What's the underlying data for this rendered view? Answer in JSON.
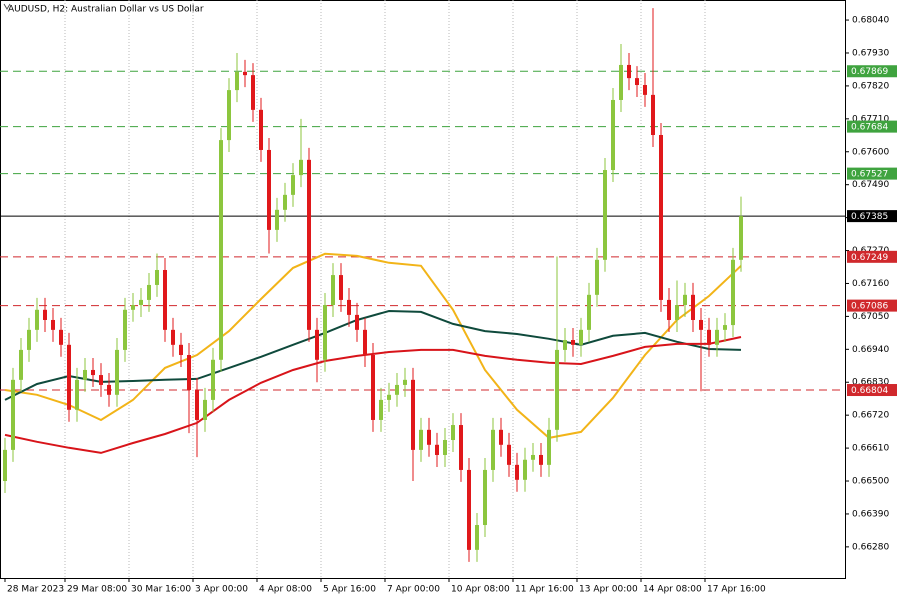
{
  "chart_data": {
    "type": "candlestick",
    "title": "AUDUSD, H2:  Australian Dollar vs US Dollar",
    "up_color": "#8cc63e",
    "down_color": "#e0181b",
    "xlim": [
      -0.625,
      105
    ],
    "xticks": [
      {
        "value": 0,
        "label": "28 Mar 2023"
      },
      {
        "value": 7.5,
        "label": "29 Mar 08:00"
      },
      {
        "value": 15.5,
        "label": "30 Mar 16:00"
      },
      {
        "value": 23.5,
        "label": "3 Apr 00:00"
      },
      {
        "value": 31.5,
        "label": "4 Apr 08:00"
      },
      {
        "value": 39.5,
        "label": "5 Apr 16:00"
      },
      {
        "value": 47.5,
        "label": "7 Apr 00:00"
      },
      {
        "value": 55.5,
        "label": "10 Apr 08:00"
      },
      {
        "value": 63.5,
        "label": "11 Apr 16:00"
      },
      {
        "value": 71.5,
        "label": "13 Apr 00:00"
      },
      {
        "value": 79.5,
        "label": "14 Apr 08:00"
      },
      {
        "value": 87.5,
        "label": "17 Apr 16:00"
      }
    ],
    "ylim": [
      0.66176,
      0.68107
    ],
    "yticks": [
      {
        "value": 0.6804,
        "label": "0.68040"
      },
      {
        "value": 0.6793,
        "label": "0.67930"
      },
      {
        "value": 0.6782,
        "label": "0.67820"
      },
      {
        "value": 0.6771,
        "label": "0.67710"
      },
      {
        "value": 0.676,
        "label": "0.67600"
      },
      {
        "value": 0.6749,
        "label": "0.67490"
      },
      {
        "value": 0.6738,
        "label": "0.67380"
      },
      {
        "value": 0.6727,
        "label": "0.67270"
      },
      {
        "value": 0.6716,
        "label": "0.67160"
      },
      {
        "value": 0.6705,
        "label": "0.67050"
      },
      {
        "value": 0.6694,
        "label": "0.66940"
      },
      {
        "value": 0.6683,
        "label": "0.66830"
      },
      {
        "value": 0.6672,
        "label": "0.66720"
      },
      {
        "value": 0.6661,
        "label": "0.66610"
      },
      {
        "value": 0.665,
        "label": "0.66500"
      },
      {
        "value": 0.6639,
        "label": "0.66390"
      },
      {
        "value": 0.6628,
        "label": "0.66280"
      }
    ],
    "grid": "vertical",
    "open": [
      0.665,
      0.66604,
      0.66838,
      0.66938,
      0.67005,
      0.67072,
      0.67038,
      0.67005,
      0.66955,
      0.66738,
      0.66838,
      0.66871,
      0.66854,
      0.66821,
      0.66788,
      0.66938,
      0.67072,
      0.67088,
      0.67105,
      0.67155,
      0.67205,
      0.67005,
      0.66955,
      0.66921,
      0.66804,
      0.66704,
      0.66771,
      0.66905,
      0.67639,
      0.67806,
      0.67867,
      0.67856,
      0.6774,
      0.67606,
      0.67339,
      0.67406,
      0.67456,
      0.67522,
      0.67573,
      0.67005,
      0.66905,
      0.67088,
      0.67188,
      0.67105,
      0.67055,
      0.67005,
      0.66921,
      0.66704,
      0.66771,
      0.66788,
      0.66821,
      0.66838,
      0.66604,
      0.66671,
      0.66621,
      0.66587,
      0.66637,
      0.66687,
      0.66537,
      0.6627,
      0.66353,
      0.66537,
      0.66671,
      0.66621,
      0.66554,
      0.66504,
      0.66571,
      0.66587,
      0.66554,
      0.66671,
      0.66938,
      0.66971,
      0.66955,
      0.67005,
      0.67122,
      0.67239,
      0.67539,
      0.67773,
      0.6789,
      0.67846,
      0.67823,
      0.6779,
      0.67656,
      0.67105,
      0.67038,
      0.67088,
      0.67122,
      0.67038,
      0.67005,
      0.66955,
      0.67005,
      0.67021,
      0.67239
    ],
    "high": [
      0.66644,
      0.66878,
      0.66978,
      0.67045,
      0.67112,
      0.67112,
      0.67078,
      0.67045,
      0.66995,
      0.66878,
      0.66911,
      0.66911,
      0.66894,
      0.66861,
      0.66978,
      0.67112,
      0.67128,
      0.67145,
      0.67195,
      0.6726,
      0.67245,
      0.67045,
      0.66995,
      0.66961,
      0.66844,
      0.66811,
      0.66945,
      0.67679,
      0.67846,
      0.6793,
      0.67907,
      0.67896,
      0.6778,
      0.67646,
      0.67446,
      0.67496,
      0.67562,
      0.6771,
      0.67613,
      0.67045,
      0.67128,
      0.67228,
      0.67228,
      0.67145,
      0.67095,
      0.67045,
      0.66961,
      0.66811,
      0.66828,
      0.66861,
      0.66878,
      0.66878,
      0.66711,
      0.66711,
      0.66661,
      0.66677,
      0.66727,
      0.66727,
      0.66577,
      0.66393,
      0.66577,
      0.66711,
      0.66711,
      0.66661,
      0.66594,
      0.66611,
      0.66627,
      0.66627,
      0.66711,
      0.6725,
      0.67011,
      0.67011,
      0.67045,
      0.67162,
      0.67279,
      0.67579,
      0.67813,
      0.6796,
      0.6793,
      0.67886,
      0.67863,
      0.6808,
      0.67696,
      0.67145,
      0.6717,
      0.67162,
      0.67162,
      0.67078,
      0.67045,
      0.67045,
      0.67061,
      0.67279,
      0.6745
    ],
    "low": [
      0.6646,
      0.66564,
      0.66798,
      0.66898,
      0.66965,
      0.66998,
      0.66965,
      0.66915,
      0.66698,
      0.66698,
      0.66798,
      0.66814,
      0.66781,
      0.66748,
      0.66748,
      0.66898,
      0.67032,
      0.67048,
      0.67065,
      0.67115,
      0.66965,
      0.66915,
      0.66881,
      0.6666,
      0.6658,
      0.66664,
      0.66731,
      0.66865,
      0.67599,
      0.67766,
      0.67816,
      0.677,
      0.67566,
      0.6726,
      0.67299,
      0.67366,
      0.67416,
      0.67482,
      0.66965,
      0.6683,
      0.66865,
      0.67048,
      0.67065,
      0.67015,
      0.66965,
      0.66881,
      0.66664,
      0.66664,
      0.66731,
      0.66748,
      0.66781,
      0.665,
      0.66564,
      0.66581,
      0.66547,
      0.66547,
      0.66597,
      0.66497,
      0.6623,
      0.6623,
      0.66313,
      0.66497,
      0.66581,
      0.66514,
      0.66464,
      0.66464,
      0.66531,
      0.66514,
      0.66514,
      0.66631,
      0.66898,
      0.66915,
      0.66915,
      0.66965,
      0.67082,
      0.67199,
      0.67499,
      0.67733,
      0.67806,
      0.67783,
      0.6775,
      0.67616,
      0.67065,
      0.66998,
      0.66998,
      0.67048,
      0.66998,
      0.668,
      0.66915,
      0.66915,
      0.66965,
      0.66981,
      0.67199
    ],
    "close": [
      0.66604,
      0.66838,
      0.66938,
      0.67005,
      0.67072,
      0.67038,
      0.67005,
      0.66955,
      0.66738,
      0.66838,
      0.66871,
      0.66854,
      0.66821,
      0.66788,
      0.66938,
      0.67072,
      0.67088,
      0.67105,
      0.67155,
      0.67205,
      0.67005,
      0.66955,
      0.66921,
      0.66804,
      0.66704,
      0.66771,
      0.66905,
      0.67639,
      0.67806,
      0.67867,
      0.67856,
      0.6774,
      0.67606,
      0.67339,
      0.67406,
      0.67456,
      0.67522,
      0.67573,
      0.67005,
      0.66905,
      0.67088,
      0.67188,
      0.67105,
      0.67055,
      0.67005,
      0.66921,
      0.66704,
      0.66771,
      0.66788,
      0.66821,
      0.66838,
      0.66604,
      0.66671,
      0.66621,
      0.66587,
      0.66637,
      0.66687,
      0.66537,
      0.6627,
      0.66353,
      0.66537,
      0.66671,
      0.66621,
      0.66554,
      0.66504,
      0.66571,
      0.66587,
      0.66554,
      0.66671,
      0.66938,
      0.66971,
      0.66955,
      0.67005,
      0.67122,
      0.67239,
      0.67539,
      0.67773,
      0.6789,
      0.67846,
      0.67823,
      0.6779,
      0.67656,
      0.67105,
      0.67038,
      0.67088,
      0.67122,
      0.67038,
      0.67005,
      0.66955,
      0.67005,
      0.67021,
      0.67239,
      0.67385
    ],
    "series": [
      {
        "color": "#f2b418",
        "x": [
          0,
          4,
          8,
          12,
          16,
          20,
          24,
          28,
          32,
          36,
          40,
          44,
          48,
          52,
          56,
          60,
          64,
          68,
          72,
          76,
          80,
          84,
          88,
          92
        ],
        "values": [
          0.66804,
          0.66788,
          0.66754,
          0.66704,
          0.66771,
          0.66878,
          0.66921,
          0.67001,
          0.67108,
          0.67212,
          0.67259,
          0.67252,
          0.67229,
          0.67219,
          0.67072,
          0.66871,
          0.66738,
          0.66644,
          0.66664,
          0.66778,
          0.66921,
          0.67038,
          0.67118,
          0.67219
        ]
      },
      {
        "color": "#0f4a3c",
        "x": [
          0,
          4,
          8,
          12,
          16,
          20,
          24,
          28,
          32,
          36,
          40,
          44,
          48,
          52,
          56,
          60,
          64,
          68,
          72,
          76,
          80,
          84,
          88,
          92
        ],
        "values": [
          0.66771,
          0.66824,
          0.66851,
          0.66831,
          0.66834,
          0.66838,
          0.66841,
          0.66878,
          0.66915,
          0.66955,
          0.66995,
          0.67038,
          0.67068,
          0.67065,
          0.67025,
          0.67001,
          0.66991,
          0.66975,
          0.66955,
          0.66985,
          0.66995,
          0.66965,
          0.66941,
          0.66938
        ]
      },
      {
        "color": "#d8141a",
        "x": [
          0,
          4,
          8,
          12,
          16,
          20,
          24,
          28,
          32,
          36,
          40,
          44,
          48,
          52,
          56,
          60,
          64,
          68,
          72,
          76,
          80,
          84,
          88,
          92
        ],
        "values": [
          0.66654,
          0.66631,
          0.66611,
          0.66594,
          0.66627,
          0.66657,
          0.66694,
          0.66771,
          0.66828,
          0.66871,
          0.66901,
          0.66918,
          0.66931,
          0.66938,
          0.66938,
          0.66918,
          0.66905,
          0.66895,
          0.66891,
          0.66918,
          0.66948,
          0.66958,
          0.66958,
          0.66981
        ]
      }
    ],
    "levels": [
      {
        "price": 0.67869,
        "color": "#3fa33f"
      },
      {
        "price": 0.67684,
        "color": "#3fa33f"
      },
      {
        "price": 0.67527,
        "color": "#3fa33f"
      },
      {
        "price": 0.67249,
        "color": "#d0282c"
      },
      {
        "price": 0.67086,
        "color": "#d0282c"
      },
      {
        "price": 0.66804,
        "color": "#d0282c"
      }
    ],
    "last_price": 0.67385
  }
}
